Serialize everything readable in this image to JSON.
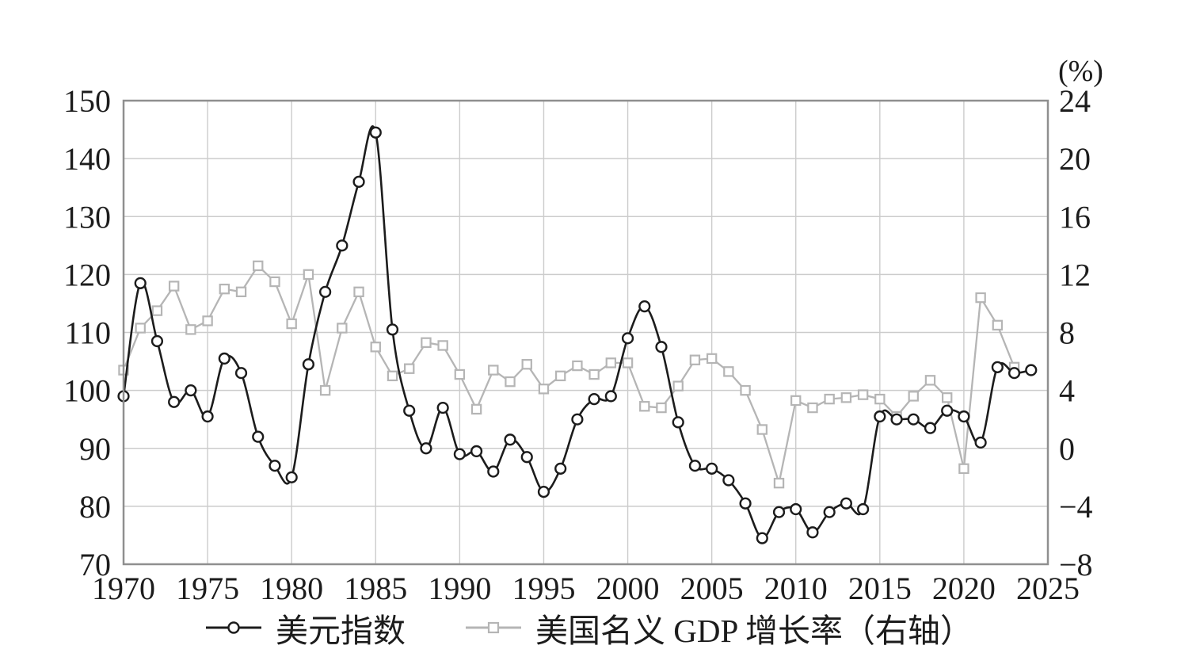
{
  "figure": {
    "right_axis_unit": "(%)"
  },
  "legend": {
    "items": [
      {
        "label": "美元指数",
        "series": "usd_index",
        "marker": "circle",
        "color": "#1c1c1c"
      },
      {
        "label": "美国名义 GDP 增长率（右轴）",
        "series": "gdp_growth",
        "marker": "square",
        "color": "#b5b5b5"
      }
    ]
  },
  "chart_data": {
    "type": "line",
    "title": "",
    "xlabel": "",
    "ylabel_left": "",
    "ylabel_right": "(%)",
    "grid": true,
    "legend_position": "bottom",
    "x": [
      1970,
      1971,
      1972,
      1973,
      1974,
      1975,
      1976,
      1977,
      1978,
      1979,
      1980,
      1981,
      1982,
      1983,
      1984,
      1985,
      1986,
      1987,
      1988,
      1989,
      1990,
      1991,
      1992,
      1993,
      1994,
      1995,
      1996,
      1997,
      1998,
      1999,
      2000,
      2001,
      2002,
      2003,
      2004,
      2005,
      2006,
      2007,
      2008,
      2009,
      2010,
      2011,
      2012,
      2013,
      2014,
      2015,
      2016,
      2017,
      2018,
      2019,
      2020,
      2021,
      2022,
      2023,
      2024
    ],
    "series": [
      {
        "name": "美元指数",
        "axis": "left",
        "marker": "circle",
        "line_color": "#1c1c1c",
        "marker_stroke": "#1c1c1c",
        "smooth": true,
        "values": [
          99,
          118.5,
          108.5,
          98,
          100,
          95.5,
          105.5,
          103,
          92,
          87,
          85,
          104.5,
          117,
          125,
          136,
          144.5,
          110.5,
          96.5,
          90,
          97,
          89,
          89.5,
          86,
          91.5,
          88.5,
          82.5,
          86.5,
          95,
          98.5,
          99,
          109,
          114.5,
          107.5,
          94.5,
          87,
          86.5,
          84.5,
          80.5,
          74.5,
          79,
          79.5,
          75.5,
          79,
          80.5,
          79.5,
          95.5,
          95,
          95,
          93.5,
          96.5,
          95.5,
          91,
          104,
          103,
          103.5
        ]
      },
      {
        "name": "美国名义 GDP 增长率（右轴）",
        "axis": "right",
        "marker": "square",
        "line_color": "#b5b5b5",
        "marker_stroke": "#b5b5b5",
        "smooth": false,
        "values": [
          5.4,
          8.3,
          9.5,
          11.2,
          8.2,
          8.8,
          11.0,
          10.8,
          12.6,
          11.5,
          8.6,
          12.0,
          4.0,
          8.3,
          10.8,
          7.0,
          5.0,
          5.5,
          7.3,
          7.1,
          5.1,
          2.7,
          5.4,
          4.6,
          5.8,
          4.1,
          5.0,
          5.7,
          5.1,
          5.9,
          5.9,
          2.9,
          2.8,
          4.3,
          6.1,
          6.2,
          5.3,
          4.0,
          1.3,
          -2.4,
          3.3,
          2.8,
          3.4,
          3.5,
          3.7,
          3.4,
          2.2,
          3.6,
          4.7,
          3.5,
          -1.4,
          10.4,
          8.5,
          5.6,
          null
        ]
      }
    ],
    "left_axis": {
      "min": 70,
      "max": 150,
      "ticks": [
        150,
        140,
        130,
        120,
        110,
        100,
        90,
        80,
        70
      ]
    },
    "right_axis": {
      "min": -8,
      "max": 24,
      "ticks": [
        24,
        20,
        16,
        12,
        8,
        4,
        0,
        -4,
        -8
      ],
      "unit": "(%)"
    },
    "x_axis": {
      "min": 1970,
      "max": 2025,
      "ticks": [
        1970,
        1975,
        1980,
        1985,
        1990,
        1995,
        2000,
        2005,
        2010,
        2015,
        2020,
        2025
      ]
    },
    "colors": {
      "grid": "#cccccc",
      "frame": "#8f8f8f",
      "usd_line": "#1c1c1c",
      "gdp_line": "#b5b5b5",
      "marker_fill": "#ffffff"
    }
  }
}
